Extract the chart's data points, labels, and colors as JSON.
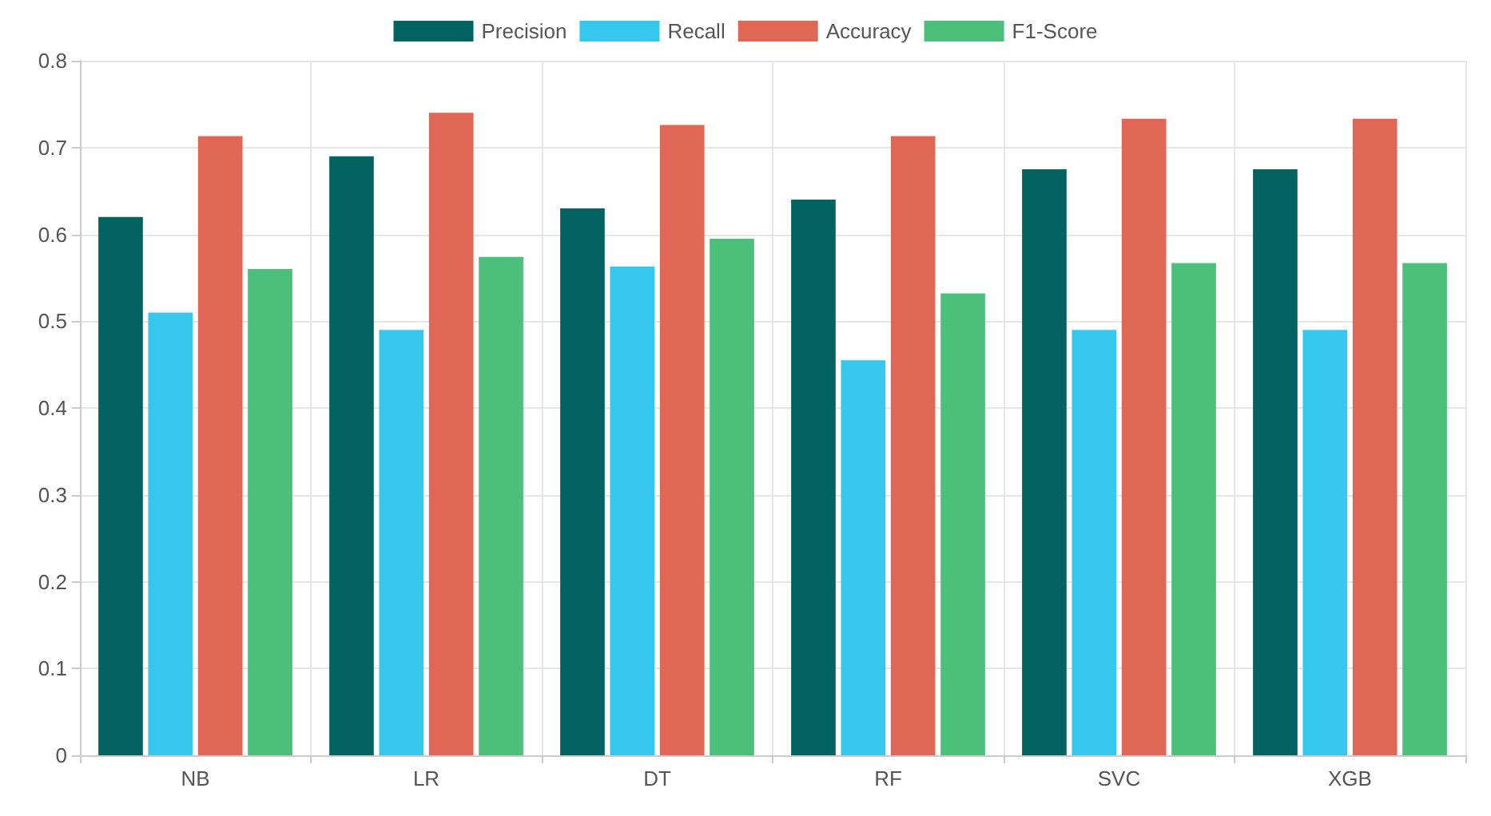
{
  "chart_data": {
    "type": "bar",
    "categories": [
      "NB",
      "LR",
      "DT",
      "RF",
      "SVC",
      "XGB"
    ],
    "series": [
      {
        "name": "Precision",
        "color": "#036360",
        "values": [
          0.62,
          0.69,
          0.63,
          0.64,
          0.675,
          0.675
        ]
      },
      {
        "name": "Recall",
        "color": "#36c8ec",
        "values": [
          0.51,
          0.49,
          0.563,
          0.455,
          0.49,
          0.49
        ]
      },
      {
        "name": "Accuracy",
        "color": "#e06655",
        "values": [
          0.713,
          0.74,
          0.726,
          0.713,
          0.733,
          0.733
        ]
      },
      {
        "name": "F1-Score",
        "color": "#4cc07b",
        "values": [
          0.56,
          0.574,
          0.595,
          0.532,
          0.567,
          0.567
        ]
      }
    ],
    "ylim": [
      0,
      0.8
    ],
    "yticks": [
      0,
      0.1,
      0.2,
      0.3,
      0.4,
      0.5,
      0.6,
      0.7,
      0.8
    ],
    "grid": true,
    "legend": "top"
  }
}
